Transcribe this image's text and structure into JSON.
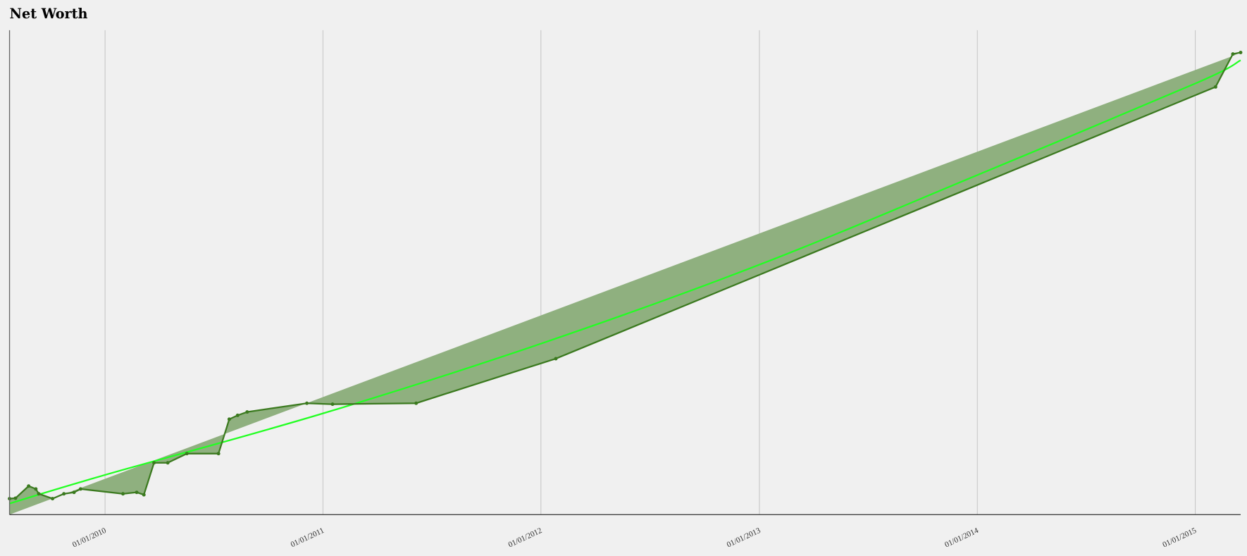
{
  "chart_data": {
    "type": "line",
    "title": "Net Worth",
    "xlabel": "",
    "ylabel": "",
    "x_scale": "date",
    "xlim": [
      "2009-07-25",
      "2015-03-18"
    ],
    "ylim": [
      0,
      100
    ],
    "y_axis_labels_shown": false,
    "grid": "vertical",
    "x_ticks": [
      {
        "date": "2010-01-01",
        "label": "01/01/2010"
      },
      {
        "date": "2011-01-01",
        "label": "01/01/2011"
      },
      {
        "date": "2012-01-01",
        "label": "01/01/2012"
      },
      {
        "date": "2013-01-01",
        "label": "01/01/2013"
      },
      {
        "date": "2014-01-01",
        "label": "01/01/2014"
      },
      {
        "date": "2015-01-01",
        "label": "01/01/2015"
      }
    ],
    "series": [
      {
        "role": "data",
        "color": "#3b7a1f",
        "points": [
          [
            "2009-07-25",
            3.3
          ],
          [
            "2009-08-04",
            3.4
          ],
          [
            "2009-08-26",
            5.9
          ],
          [
            "2009-09-07",
            5.3
          ],
          [
            "2009-09-12",
            4.3
          ],
          [
            "2009-10-05",
            3.3
          ],
          [
            "2009-10-24",
            4.3
          ],
          [
            "2009-11-10",
            4.6
          ],
          [
            "2009-11-21",
            5.3
          ],
          [
            "2010-01-31",
            4.3
          ],
          [
            "2010-02-23",
            4.6
          ],
          [
            "2010-03-07",
            4.1
          ],
          [
            "2010-03-24",
            10.7
          ],
          [
            "2010-04-16",
            10.7
          ],
          [
            "2010-05-18",
            12.6
          ],
          [
            "2010-07-10",
            12.6
          ],
          [
            "2010-07-28",
            19.7
          ],
          [
            "2010-08-11",
            20.5
          ],
          [
            "2010-08-27",
            21.2
          ],
          [
            "2010-12-05",
            23.0
          ],
          [
            "2011-01-17",
            22.8
          ],
          [
            "2011-06-06",
            23.0
          ],
          [
            "2012-01-26",
            32.2
          ],
          [
            "2015-02-04",
            88.3
          ],
          [
            "2015-03-05",
            95.1
          ],
          [
            "2015-03-18",
            95.4
          ]
        ]
      },
      {
        "role": "trend",
        "color": "#22ff22",
        "points": [
          [
            "2009-07-25",
            2.3
          ],
          [
            "2010-01-01",
            8.2
          ],
          [
            "2011-01-01",
            20.9
          ],
          [
            "2012-01-01",
            35.3
          ],
          [
            "2013-01-01",
            51.6
          ],
          [
            "2014-01-01",
            70.1
          ],
          [
            "2015-01-01",
            89.0
          ],
          [
            "2015-03-18",
            93.8
          ]
        ]
      },
      {
        "role": "reference",
        "points": [
          [
            "2009-07-25",
            0
          ],
          [
            "2015-03-05",
            94.7
          ]
        ]
      }
    ],
    "fill": {
      "between": [
        "data",
        "reference"
      ],
      "color": "#8fb07f"
    }
  }
}
